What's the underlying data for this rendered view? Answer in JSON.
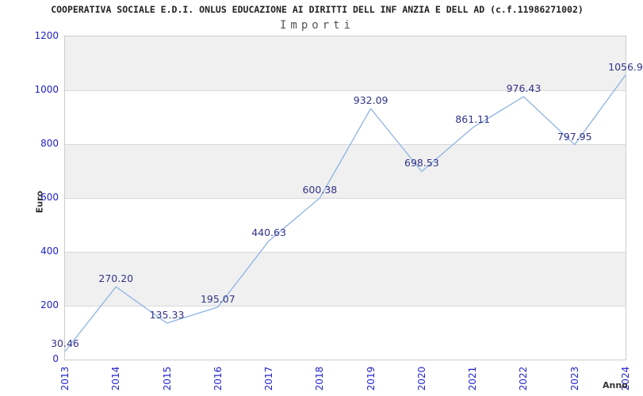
{
  "header": {
    "title": "COOPERATIVA SOCIALE E.D.I. ONLUS EDUCAZIONE AI DIRITTI DELL INF ANZIA E DELL AD (c.f.11986271002)",
    "subtitle": "Importi"
  },
  "chart_data": {
    "type": "line",
    "title": "COOPERATIVA SOCIALE E.D.I. ONLUS EDUCAZIONE AI DIRITTI DELL INF ANZIA E DELL AD (c.f.11986271002)",
    "subtitle": "Importi",
    "xlabel": "Anno",
    "ylabel": "Euro",
    "categories": [
      "2013",
      "2014",
      "2015",
      "2016",
      "2017",
      "2018",
      "2019",
      "2020",
      "2021",
      "2022",
      "2023",
      "2024"
    ],
    "values": [
      30.46,
      270.2,
      135.33,
      195.07,
      440.63,
      600.38,
      932.09,
      698.53,
      861.11,
      976.43,
      797.95,
      1056.9
    ],
    "point_labels": [
      "30.46",
      "270.20",
      "135.33",
      "195.07",
      "440.63",
      "600.38",
      "932.09",
      "698.53",
      "861.11",
      "976.43",
      "797.95",
      "1056.9"
    ],
    "ylim": [
      0,
      1200
    ],
    "y_ticks": [
      0,
      200,
      400,
      600,
      800,
      1000,
      1200
    ],
    "grid": "horizontal-bands-alternating",
    "legend": "none",
    "colors": {
      "line": "#8cb3e3",
      "tick_label": "#2222cc",
      "point_label": "#333388",
      "band_gray": "#f0f0f0",
      "band_white": "#ffffff",
      "grid_line": "#d9d9d9",
      "plot_border": "#cccccc",
      "title": "#222222",
      "subtitle": "#555555",
      "axis_title": "#333333"
    }
  }
}
